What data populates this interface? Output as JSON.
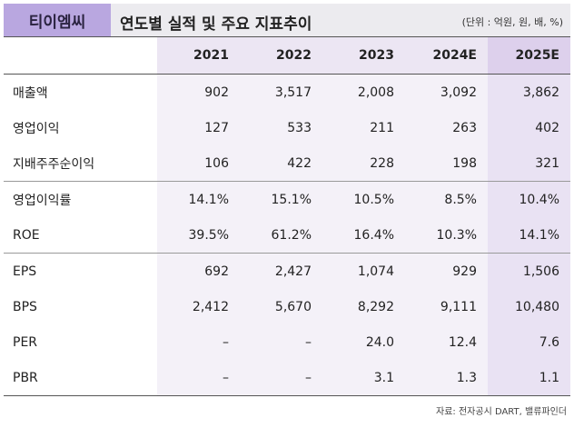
{
  "header": {
    "company": "티이엠씨",
    "title": "연도별 실적 및 주요 지표추이",
    "unit": "(단위 : 억원, 원, 배, %)"
  },
  "columns": [
    "2021",
    "2022",
    "2023",
    "2024E",
    "2025E"
  ],
  "rows": [
    {
      "label": "매출액",
      "values": [
        "902",
        "3,517",
        "2,008",
        "3,092",
        "3,862"
      ]
    },
    {
      "label": "영업이익",
      "values": [
        "127",
        "533",
        "211",
        "263",
        "402"
      ]
    },
    {
      "label": "지배주주순이익",
      "values": [
        "106",
        "422",
        "228",
        "198",
        "321"
      ]
    },
    {
      "label": "영업이익률",
      "values": [
        "14.1%",
        "15.1%",
        "10.5%",
        "8.5%",
        "10.4%"
      ]
    },
    {
      "label": "ROE",
      "values": [
        "39.5%",
        "61.2%",
        "16.4%",
        "10.3%",
        "14.1%"
      ]
    },
    {
      "label": "EPS",
      "values": [
        "692",
        "2,427",
        "1,074",
        "929",
        "1,506"
      ]
    },
    {
      "label": "BPS",
      "values": [
        "2,412",
        "5,670",
        "8,292",
        "9,111",
        "10,480"
      ]
    },
    {
      "label": "PER",
      "values": [
        "–",
        "–",
        "24.0",
        "12.4",
        "7.6"
      ]
    },
    {
      "label": "PBR",
      "values": [
        "–",
        "–",
        "3.1",
        "1.3",
        "1.1"
      ]
    }
  ],
  "source": "자료: 전자공시 DART, 밸류파인더"
}
